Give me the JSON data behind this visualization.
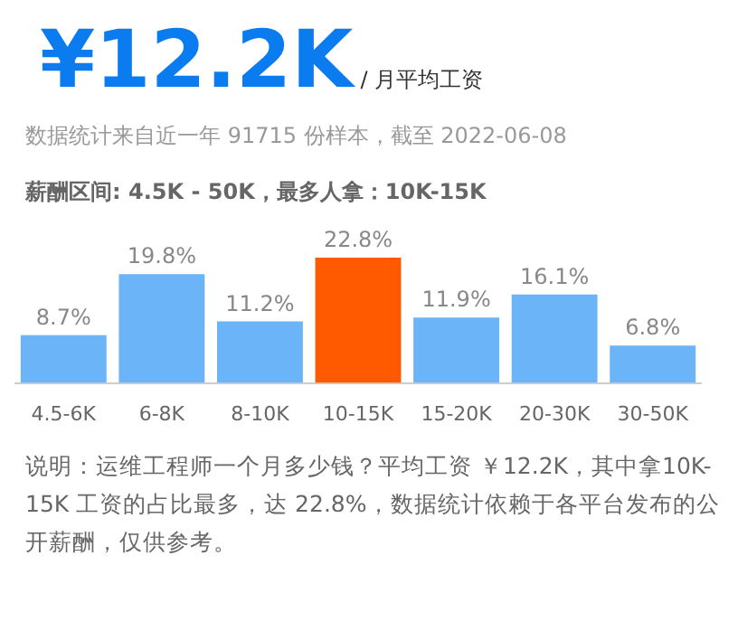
{
  "chart_data": {
    "type": "bar",
    "title": "¥12.2K",
    "subtitle": "/ 月平均工资",
    "annotations": [
      "数据统计来自近一年 91715 份样本，截至 2022-06-08",
      "薪酬区间: 4.5K - 50K，最多人拿：10K-15K",
      "说明：运维工程师一个月多少钱？平均工资 ￥12.2K，其中拿10K-15K 工资的占比最多，达 22.8%，数据统计依赖于各平台发布的公开薪酬，仅供参考。"
    ],
    "categories": [
      "4.5-6K",
      "6-8K",
      "8-10K",
      "10-15K",
      "15-20K",
      "20-30K",
      "30-50K"
    ],
    "values": [
      8.7,
      19.8,
      11.2,
      22.8,
      11.9,
      16.1,
      6.8
    ],
    "colors": [
      "#6cb4f8",
      "#6cb4f8",
      "#6cb4f8",
      "#ff5a00",
      "#6cb4f8",
      "#6cb4f8",
      "#6cb4f8"
    ],
    "value_labels": [
      "8.7%",
      "19.8%",
      "11.2%",
      "22.8%",
      "11.9%",
      "16.1%",
      "6.8%"
    ],
    "tick_labels": "x"
  }
}
